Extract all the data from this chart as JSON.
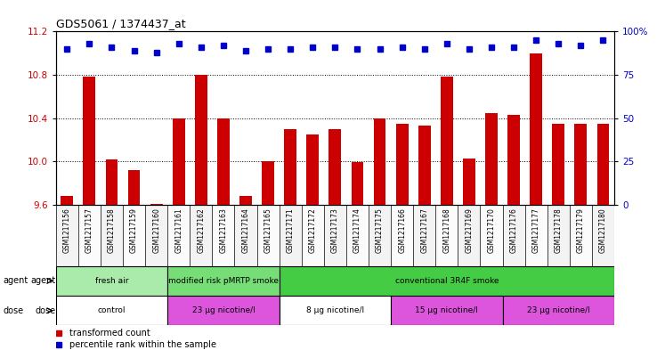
{
  "title": "GDS5061 / 1374437_at",
  "samples": [
    "GSM1217156",
    "GSM1217157",
    "GSM1217158",
    "GSM1217159",
    "GSM1217160",
    "GSM1217161",
    "GSM1217162",
    "GSM1217163",
    "GSM1217164",
    "GSM1217165",
    "GSM1217171",
    "GSM1217172",
    "GSM1217173",
    "GSM1217174",
    "GSM1217175",
    "GSM1217166",
    "GSM1217167",
    "GSM1217168",
    "GSM1217169",
    "GSM1217170",
    "GSM1217176",
    "GSM1217177",
    "GSM1217178",
    "GSM1217179",
    "GSM1217180"
  ],
  "bar_values": [
    9.68,
    10.78,
    10.02,
    9.92,
    9.61,
    10.4,
    10.8,
    10.4,
    9.68,
    10.0,
    10.3,
    10.25,
    10.3,
    9.99,
    10.4,
    10.35,
    10.33,
    10.78,
    10.03,
    10.45,
    10.43,
    11.0,
    10.35,
    10.35,
    10.35
  ],
  "percentile_values": [
    90,
    93,
    91,
    89,
    88,
    93,
    91,
    92,
    89,
    90,
    90,
    91,
    91,
    90,
    90,
    91,
    90,
    93,
    90,
    91,
    91,
    95,
    93,
    92,
    95
  ],
  "ylim_left": [
    9.6,
    11.2
  ],
  "ylim_right": [
    0,
    100
  ],
  "yticks_left": [
    9.6,
    10.0,
    10.4,
    10.8,
    11.2
  ],
  "yticks_right": [
    0,
    25,
    50,
    75,
    100
  ],
  "ytick_labels_right": [
    "0",
    "25",
    "50",
    "75",
    "100%"
  ],
  "bar_color": "#cc0000",
  "dot_color": "#0000cc",
  "agent_groups": [
    {
      "label": "fresh air",
      "start": 0,
      "end": 5,
      "color": "#aaeaaa"
    },
    {
      "label": "modified risk pMRTP smoke",
      "start": 5,
      "end": 10,
      "color": "#77dd77"
    },
    {
      "label": "conventional 3R4F smoke",
      "start": 10,
      "end": 25,
      "color": "#44cc44"
    }
  ],
  "dose_groups": [
    {
      "label": "control",
      "start": 0,
      "end": 5,
      "color": "#ffffff"
    },
    {
      "label": "23 μg nicotine/l",
      "start": 5,
      "end": 10,
      "color": "#dd55dd"
    },
    {
      "label": "8 μg nicotine/l",
      "start": 10,
      "end": 15,
      "color": "#ffffff"
    },
    {
      "label": "15 μg nicotine/l",
      "start": 15,
      "end": 20,
      "color": "#dd55dd"
    },
    {
      "label": "23 μg nicotine/l",
      "start": 20,
      "end": 25,
      "color": "#dd55dd"
    }
  ],
  "dotted_gridlines": [
    10.0,
    10.4,
    10.8
  ],
  "legend_items": [
    {
      "color": "#cc0000",
      "label": "transformed count"
    },
    {
      "color": "#0000cc",
      "label": "percentile rank within the sample"
    }
  ]
}
